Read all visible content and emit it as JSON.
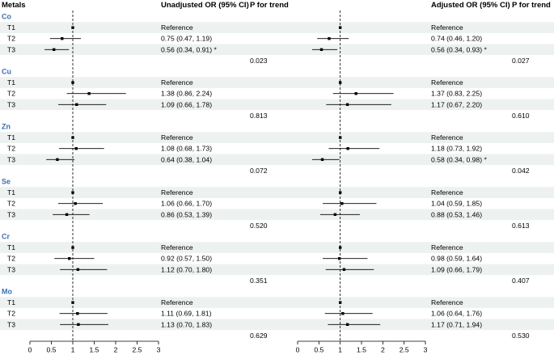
{
  "header": {
    "metals": "Metals",
    "unadjusted": "Unadjusted OR (95% CI)",
    "adjusted": "Adjusted OR (95% CI)",
    "p_trend": "P for trend"
  },
  "colors": {
    "metal_label": "#3d6fb6",
    "band": "#edf1f0",
    "marker": "#000000"
  },
  "chart_data": {
    "type": "forest",
    "xlim": [
      0,
      3
    ],
    "ticks": [
      0,
      0.5,
      1,
      1.5,
      2,
      2.5,
      3
    ],
    "tick_labels": [
      "0",
      "0.5",
      "1",
      "1.5",
      "2",
      "2.5",
      "3"
    ],
    "reference_line": 1,
    "groups": [
      {
        "metal": "Co",
        "rows": [
          {
            "label": "T1",
            "u_or": 1,
            "u_lo": 1,
            "u_hi": 1,
            "u_text": "Reference",
            "a_or": 1,
            "a_lo": 1,
            "a_hi": 1,
            "a_text": "Reference"
          },
          {
            "label": "T2",
            "u_or": 0.75,
            "u_lo": 0.47,
            "u_hi": 1.19,
            "u_text": "0.75 (0.47, 1.19)",
            "a_or": 0.74,
            "a_lo": 0.46,
            "a_hi": 1.2,
            "a_text": "0.74 (0.46, 1.20)"
          },
          {
            "label": "T3",
            "u_or": 0.56,
            "u_lo": 0.34,
            "u_hi": 0.91,
            "u_text": "0.56 (0.34, 0.91) *",
            "a_or": 0.56,
            "a_lo": 0.34,
            "a_hi": 0.93,
            "a_text": "0.56 (0.34, 0.93) *"
          }
        ],
        "p_unadj": "0.023",
        "p_adj": "0.027"
      },
      {
        "metal": "Cu",
        "rows": [
          {
            "label": "T1",
            "u_or": 1,
            "u_lo": 1,
            "u_hi": 1,
            "u_text": "Reference",
            "a_or": 1,
            "a_lo": 1,
            "a_hi": 1,
            "a_text": "Reference"
          },
          {
            "label": "T2",
            "u_or": 1.38,
            "u_lo": 0.86,
            "u_hi": 2.24,
            "u_text": "1.38 (0.86, 2.24)",
            "a_or": 1.37,
            "a_lo": 0.83,
            "a_hi": 2.25,
            "a_text": "1.37 (0.83, 2.25)"
          },
          {
            "label": "T3",
            "u_or": 1.09,
            "u_lo": 0.66,
            "u_hi": 1.78,
            "u_text": "1.09 (0.66, 1.78)",
            "a_or": 1.17,
            "a_lo": 0.67,
            "a_hi": 2.2,
            "a_text": "1.17 (0.67, 2.20)"
          }
        ],
        "p_unadj": "0.813",
        "p_adj": "0.610"
      },
      {
        "metal": "Zn",
        "rows": [
          {
            "label": "T1",
            "u_or": 1,
            "u_lo": 1,
            "u_hi": 1,
            "u_text": "Reference",
            "a_or": 1,
            "a_lo": 1,
            "a_hi": 1,
            "a_text": "Reference"
          },
          {
            "label": "T2",
            "u_or": 1.08,
            "u_lo": 0.68,
            "u_hi": 1.73,
            "u_text": "1.08 (0.68, 1.73)",
            "a_or": 1.18,
            "a_lo": 0.73,
            "a_hi": 1.92,
            "a_text": "1.18 (0.73, 1.92)"
          },
          {
            "label": "T3",
            "u_or": 0.64,
            "u_lo": 0.38,
            "u_hi": 1.04,
            "u_text": "0.64 (0.38, 1.04)",
            "a_or": 0.58,
            "a_lo": 0.34,
            "a_hi": 0.98,
            "a_text": "0.58 (0.34, 0.98) *"
          }
        ],
        "p_unadj": "0.072",
        "p_adj": "0.042"
      },
      {
        "metal": "Se",
        "rows": [
          {
            "label": "T1",
            "u_or": 1,
            "u_lo": 1,
            "u_hi": 1,
            "u_text": "Reference",
            "a_or": 1,
            "a_lo": 1,
            "a_hi": 1,
            "a_text": "Reference"
          },
          {
            "label": "T2",
            "u_or": 1.06,
            "u_lo": 0.66,
            "u_hi": 1.7,
            "u_text": "1.06 (0.66, 1.70)",
            "a_or": 1.04,
            "a_lo": 0.59,
            "a_hi": 1.85,
            "a_text": "1.04 (0.59, 1.85)"
          },
          {
            "label": "T3",
            "u_or": 0.86,
            "u_lo": 0.53,
            "u_hi": 1.39,
            "u_text": "0.86 (0.53, 1.39)",
            "a_or": 0.88,
            "a_lo": 0.53,
            "a_hi": 1.46,
            "a_text": "0.88 (0.53, 1.46)"
          }
        ],
        "p_unadj": "0.520",
        "p_adj": "0.613"
      },
      {
        "metal": "Cr",
        "rows": [
          {
            "label": "T1",
            "u_or": 1,
            "u_lo": 1,
            "u_hi": 1,
            "u_text": "Reference",
            "a_or": 1,
            "a_lo": 1,
            "a_hi": 1,
            "a_text": "Reference"
          },
          {
            "label": "T2",
            "u_or": 0.92,
            "u_lo": 0.57,
            "u_hi": 1.5,
            "u_text": "0.92 (0.57, 1.50)",
            "a_or": 0.98,
            "a_lo": 0.59,
            "a_hi": 1.64,
            "a_text": "0.98 (0.59, 1.64)"
          },
          {
            "label": "T3",
            "u_or": 1.12,
            "u_lo": 0.7,
            "u_hi": 1.8,
            "u_text": "1.12 (0.70, 1.80)",
            "a_or": 1.09,
            "a_lo": 0.66,
            "a_hi": 1.79,
            "a_text": "1.09 (0.66, 1.79)"
          }
        ],
        "p_unadj": "0.351",
        "p_adj": "0.407"
      },
      {
        "metal": "Mo",
        "rows": [
          {
            "label": "T1",
            "u_or": 1,
            "u_lo": 1,
            "u_hi": 1,
            "u_text": "Reference",
            "a_or": 1,
            "a_lo": 1,
            "a_hi": 1,
            "a_text": "Reference"
          },
          {
            "label": "T2",
            "u_or": 1.11,
            "u_lo": 0.69,
            "u_hi": 1.81,
            "u_text": "1.11 (0.69, 1.81)",
            "a_or": 1.06,
            "a_lo": 0.64,
            "a_hi": 1.76,
            "a_text": "1.06 (0.64, 1.76)"
          },
          {
            "label": "T3",
            "u_or": 1.13,
            "u_lo": 0.7,
            "u_hi": 1.83,
            "u_text": "1.13 (0.70, 1.83)",
            "a_or": 1.17,
            "a_lo": 0.71,
            "a_hi": 1.94,
            "a_text": "1.17 (0.71, 1.94)"
          }
        ],
        "p_unadj": "0.629",
        "p_adj": "0.530"
      }
    ]
  }
}
